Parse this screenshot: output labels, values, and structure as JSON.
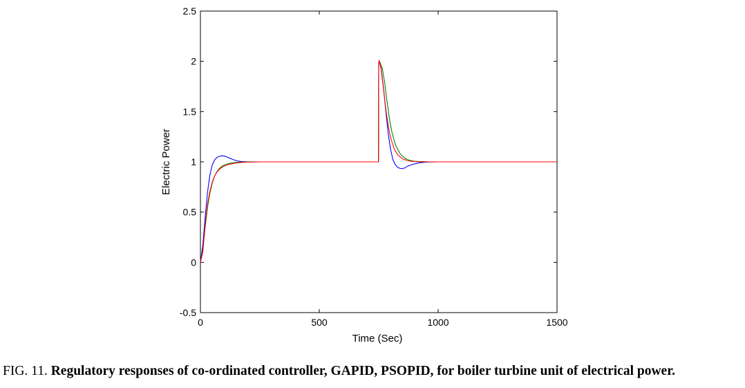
{
  "chart_data": {
    "type": "line",
    "title": "",
    "xlabel": "Time (Sec)",
    "ylabel": "Electric Power",
    "xlim": [
      0,
      1500
    ],
    "ylim": [
      -0.5,
      2.5
    ],
    "xticks": [
      0,
      500,
      1000,
      1500
    ],
    "xtick_labels": [
      "0",
      "500",
      "1000",
      "1500"
    ],
    "yticks": [
      -0.5,
      0,
      0.5,
      1,
      1.5,
      2,
      2.5
    ],
    "ytick_labels": [
      "-0.5",
      "0",
      "0.5",
      "1",
      "1.5",
      "2",
      "2.5"
    ],
    "grid": false,
    "legend": "none",
    "series": [
      {
        "color": "#0000ff",
        "x": [
          0,
          10,
          20,
          30,
          40,
          50,
          60,
          70,
          80,
          90,
          100,
          110,
          120,
          135,
          150,
          170,
          200,
          250,
          749,
          750,
          752,
          760,
          770,
          780,
          790,
          800,
          810,
          820,
          830,
          840,
          850,
          860,
          870,
          880,
          900,
          920,
          950,
          1000,
          1500
        ],
        "y": [
          0,
          0.17,
          0.45,
          0.7,
          0.87,
          0.97,
          1.02,
          1.045,
          1.055,
          1.06,
          1.058,
          1.05,
          1.04,
          1.025,
          1.012,
          1.003,
          1.0,
          1.0,
          1.0,
          1.99,
          2.0,
          1.93,
          1.74,
          1.5,
          1.28,
          1.12,
          1.02,
          0.97,
          0.945,
          0.935,
          0.933,
          0.94,
          0.955,
          0.965,
          0.98,
          0.99,
          0.998,
          1.0,
          1.0
        ]
      },
      {
        "color": "#008000",
        "x": [
          0,
          10,
          20,
          30,
          40,
          50,
          60,
          70,
          80,
          90,
          100,
          120,
          140,
          160,
          180,
          200,
          250,
          749,
          750,
          755,
          765,
          775,
          785,
          795,
          805,
          820,
          840,
          860,
          880,
          900,
          930,
          960,
          1000,
          1500
        ],
        "y": [
          0,
          0.12,
          0.35,
          0.55,
          0.69,
          0.79,
          0.86,
          0.905,
          0.935,
          0.955,
          0.968,
          0.983,
          0.992,
          0.996,
          0.998,
          0.999,
          1.0,
          1.0,
          1.98,
          1.99,
          1.93,
          1.79,
          1.6,
          1.43,
          1.3,
          1.17,
          1.08,
          1.035,
          1.015,
          1.006,
          1.002,
          1.0,
          1.0,
          1.0
        ]
      },
      {
        "color": "#ff0000",
        "x": [
          0,
          10,
          20,
          30,
          40,
          50,
          60,
          70,
          80,
          90,
          100,
          120,
          140,
          160,
          180,
          200,
          250,
          749,
          750,
          752,
          760,
          770,
          780,
          790,
          800,
          815,
          830,
          850,
          870,
          890,
          910,
          940,
          1000,
          1500
        ],
        "y": [
          0,
          0.1,
          0.38,
          0.58,
          0.71,
          0.8,
          0.86,
          0.9,
          0.925,
          0.945,
          0.958,
          0.975,
          0.985,
          0.991,
          0.995,
          0.998,
          1.0,
          1.0,
          1.99,
          2.01,
          1.92,
          1.73,
          1.52,
          1.36,
          1.24,
          1.13,
          1.07,
          1.03,
          1.012,
          1.005,
          1.002,
          1.0,
          1.0,
          1.0
        ]
      }
    ]
  },
  "caption": {
    "lead": "FIG. 11.",
    "text": "Regulatory responses of co-ordinated controller, GAPID, PSOPID, for boiler turbine unit of electrical power."
  }
}
